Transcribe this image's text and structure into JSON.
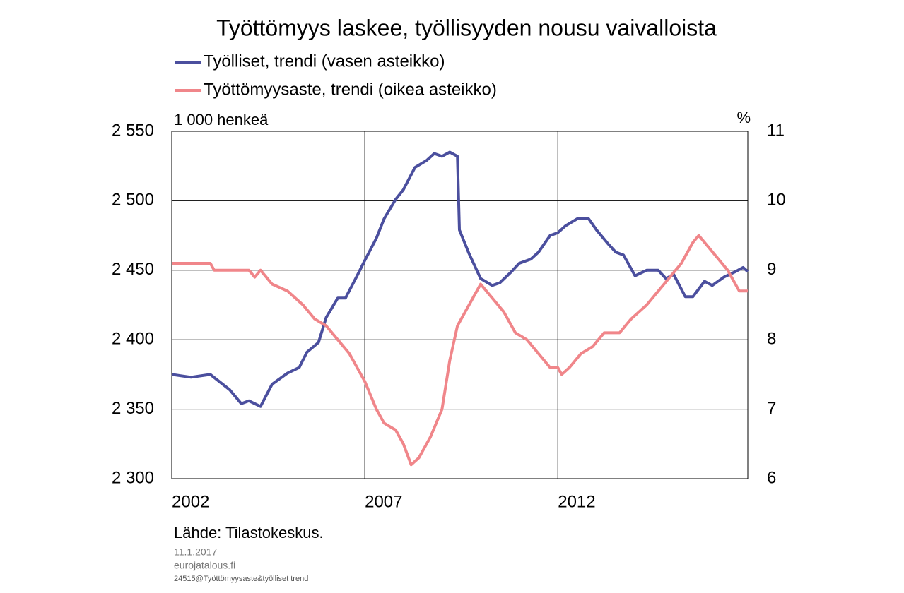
{
  "chart_data": {
    "type": "line",
    "title": "Työttömyys laskee, työllisyyden nousu vaivalloista",
    "y_label": "1 000 henkeä",
    "y2_label": "%",
    "source": "Lähde:  Tilastokeskus.",
    "date": "11.1.2017",
    "site": "eurojatalous.fi",
    "file": "24515@Työttömyysaste&työlliset trend",
    "xlim": [
      2002,
      2016.92
    ],
    "xticks": [
      2002,
      2007,
      2012
    ],
    "ylim": [
      2300,
      2550
    ],
    "yticks": [
      {
        "value": 2300,
        "label": "2 300"
      },
      {
        "value": 2350,
        "label": "2 350"
      },
      {
        "value": 2400,
        "label": "2 400"
      },
      {
        "value": 2450,
        "label": "2 450"
      },
      {
        "value": 2500,
        "label": "2 500"
      },
      {
        "value": 2550,
        "label": "2 550"
      }
    ],
    "y2lim": [
      6,
      11
    ],
    "y2ticks": [
      6,
      7,
      8,
      9,
      10,
      11
    ],
    "grid": true,
    "series": [
      {
        "name": "Työlliset, trendi (vasen asteikko)",
        "color": "#4b4f9e",
        "x": [
          2002.0,
          2002.5,
          2003.0,
          2003.5,
          2003.8,
          2004.0,
          2004.3,
          2004.6,
          2005.0,
          2005.3,
          2005.5,
          2005.8,
          2006.0,
          2006.3,
          2006.5,
          2006.8,
          2007.0,
          2007.3,
          2007.5,
          2007.8,
          2008.0,
          2008.3,
          2008.6,
          2008.8,
          2009.0,
          2009.2,
          2009.4,
          2009.45,
          2009.7,
          2010.0,
          2010.3,
          2010.5,
          2010.8,
          2011.0,
          2011.3,
          2011.5,
          2011.8,
          2012.0,
          2012.2,
          2012.5,
          2012.8,
          2013.0,
          2013.3,
          2013.5,
          2013.7,
          2014.0,
          2014.3,
          2014.6,
          2014.8,
          2015.0,
          2015.3,
          2015.5,
          2015.8,
          2016.0,
          2016.3,
          2016.6,
          2016.8,
          2016.92
        ],
        "values": [
          2375,
          2373,
          2375,
          2364,
          2354,
          2356,
          2352,
          2368,
          2376,
          2380,
          2391,
          2398,
          2416,
          2430,
          2430,
          2446,
          2457,
          2473,
          2487,
          2501,
          2508,
          2524,
          2529,
          2534,
          2532,
          2535,
          2532,
          2479,
          2462,
          2444,
          2439,
          2441,
          2449,
          2455,
          2458,
          2463,
          2475,
          2477,
          2482,
          2487,
          2487,
          2479,
          2469,
          2463,
          2461,
          2446,
          2450,
          2450,
          2444,
          2447,
          2431,
          2431,
          2442,
          2439,
          2445,
          2449,
          2452,
          2449
        ]
      },
      {
        "name": "Työttömyysaste, trendi (oikea asteikko)",
        "color": "#f0868a",
        "axis": "y2",
        "x": [
          2002.0,
          2003.0,
          2003.1,
          2004.0,
          2004.15,
          2004.3,
          2004.6,
          2005.0,
          2005.4,
          2005.7,
          2006.0,
          2006.3,
          2006.6,
          2007.0,
          2007.3,
          2007.5,
          2007.8,
          2008.0,
          2008.2,
          2008.4,
          2008.7,
          2009.0,
          2009.2,
          2009.4,
          2009.7,
          2010.0,
          2010.3,
          2010.6,
          2010.9,
          2011.2,
          2011.5,
          2011.8,
          2012.0,
          2012.1,
          2012.3,
          2012.6,
          2012.9,
          2013.2,
          2013.6,
          2013.9,
          2014.3,
          2014.6,
          2014.9,
          2015.2,
          2015.5,
          2015.65,
          2015.8,
          2016.1,
          2016.4,
          2016.6,
          2016.7,
          2016.92
        ],
        "values": [
          9.1,
          9.1,
          9.0,
          9.0,
          8.9,
          9.0,
          8.8,
          8.7,
          8.5,
          8.3,
          8.2,
          8.0,
          7.8,
          7.4,
          7.0,
          6.8,
          6.7,
          6.5,
          6.2,
          6.3,
          6.6,
          7.0,
          7.7,
          8.2,
          8.5,
          8.8,
          8.6,
          8.4,
          8.1,
          8.0,
          7.8,
          7.6,
          7.6,
          7.5,
          7.6,
          7.8,
          7.9,
          8.1,
          8.1,
          8.3,
          8.5,
          8.7,
          8.9,
          9.1,
          9.4,
          9.5,
          9.4,
          9.2,
          9.0,
          8.8,
          8.7,
          8.7
        ]
      }
    ]
  }
}
